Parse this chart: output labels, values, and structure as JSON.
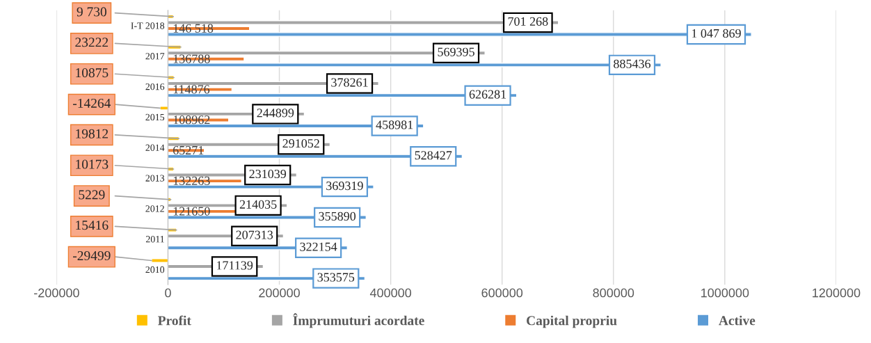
{
  "chart_data": {
    "type": "bar",
    "orientation": "horizontal",
    "categories": [
      "I-T 2018",
      "2017",
      "2016",
      "2015",
      "2014",
      "2013",
      "2012",
      "2011",
      "2010"
    ],
    "series": [
      {
        "name": "Profit",
        "color": "#ffc000",
        "values": [
          9730,
          23222,
          10875,
          -14264,
          19812,
          10173,
          5229,
          15416,
          -29499
        ],
        "value_labels": [
          "9 730",
          "23222",
          "10875",
          "-14264",
          "19812",
          "10173",
          "5229",
          "15416",
          "-29499"
        ]
      },
      {
        "name": "Împrumuturi acordate",
        "color": "#a5a5a5",
        "values": [
          701268,
          569395,
          378261,
          244899,
          291052,
          231039,
          214035,
          207313,
          171139
        ],
        "value_labels": [
          "701 268",
          "569395",
          "378261",
          "244899",
          "291052",
          "231039",
          "214035",
          "207313",
          "171139"
        ]
      },
      {
        "name": "Capital propriu",
        "color": "#ed7d31",
        "values": [
          146518,
          136788,
          114876,
          108962,
          65271,
          132263,
          121650,
          null,
          null
        ],
        "value_labels": [
          "146 518",
          "136788",
          "114876",
          "108962",
          "65271",
          "132263",
          "121650",
          null,
          null
        ]
      },
      {
        "name": "Active",
        "color": "#5b9bd5",
        "values": [
          1047869,
          885436,
          626281,
          458981,
          528427,
          369319,
          355890,
          322154,
          353575
        ],
        "value_labels": [
          "1 047 869",
          "885436",
          "626281",
          "458981",
          "528427",
          "369319",
          "355890",
          "322154",
          "353575"
        ]
      }
    ],
    "xlim": [
      -200000,
      1200000
    ],
    "xticks": [
      -200000,
      0,
      200000,
      400000,
      600000,
      800000,
      1000000,
      1200000
    ],
    "grid": "x",
    "legend": "bottom"
  }
}
